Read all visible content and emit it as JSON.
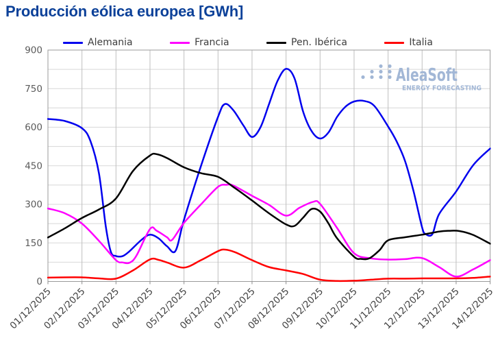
{
  "watermark": {
    "name": "AleaSoft",
    "tagline": "ENERGY FORECASTING",
    "color": "#a2b7d6",
    "logo": "dots-triangle-icon"
  },
  "chart_data": {
    "type": "line",
    "title": "Producción eólica europea [GWh]",
    "title_color": "#0c4199",
    "xlabel": "",
    "ylabel": "",
    "ylim": [
      0,
      900
    ],
    "y_major_ticks": [
      0,
      150,
      300,
      450,
      600,
      750,
      900
    ],
    "y_minor_grid_step": 75,
    "grid": true,
    "legend_position": "top",
    "x_tick_labels": [
      "01/12/2025",
      "02/12/2025",
      "03/12/2025",
      "04/12/2025",
      "05/12/2025",
      "06/12/2025",
      "07/12/2025",
      "08/12/2025",
      "09/12/2025",
      "10/12/2025",
      "11/12/2025",
      "12/12/2025",
      "13/12/2025",
      "14/12/2025"
    ],
    "x_unit": "day-index (1 = 01/12/2025), fractional = intra-day",
    "y_unit": "GWh",
    "series": [
      {
        "name": "Alemania",
        "color": "#0000ee",
        "points": [
          [
            1,
            632
          ],
          [
            1.5,
            624
          ],
          [
            2,
            596
          ],
          [
            2.25,
            546
          ],
          [
            2.5,
            420
          ],
          [
            2.7,
            215
          ],
          [
            2.85,
            115
          ],
          [
            3,
            99
          ],
          [
            3.2,
            99
          ],
          [
            3.4,
            118
          ],
          [
            3.75,
            162
          ],
          [
            4,
            182
          ],
          [
            4.25,
            168
          ],
          [
            4.5,
            137
          ],
          [
            4.75,
            119
          ],
          [
            5,
            240
          ],
          [
            5.5,
            450
          ],
          [
            6,
            640
          ],
          [
            6.2,
            690
          ],
          [
            6.45,
            666
          ],
          [
            6.75,
            606
          ],
          [
            7,
            562
          ],
          [
            7.25,
            600
          ],
          [
            7.5,
            690
          ],
          [
            7.75,
            780
          ],
          [
            8,
            827
          ],
          [
            8.25,
            790
          ],
          [
            8.5,
            661
          ],
          [
            8.75,
            585
          ],
          [
            9,
            556
          ],
          [
            9.25,
            580
          ],
          [
            9.5,
            640
          ],
          [
            9.75,
            680
          ],
          [
            10,
            700
          ],
          [
            10.3,
            702
          ],
          [
            10.6,
            682
          ],
          [
            11,
            603
          ],
          [
            11.25,
            545
          ],
          [
            11.5,
            468
          ],
          [
            11.75,
            350
          ],
          [
            12,
            210
          ],
          [
            12.1,
            185
          ],
          [
            12.3,
            184
          ],
          [
            12.5,
            262
          ],
          [
            13,
            350
          ],
          [
            13.5,
            452
          ],
          [
            14,
            517
          ]
        ]
      },
      {
        "name": "Francia",
        "color": "#ff00ff",
        "points": [
          [
            1,
            284
          ],
          [
            1.5,
            265
          ],
          [
            2,
            225
          ],
          [
            2.5,
            158
          ],
          [
            3,
            83
          ],
          [
            3.2,
            74
          ],
          [
            3.4,
            73
          ],
          [
            3.6,
            100
          ],
          [
            4,
            204
          ],
          [
            4.2,
            197
          ],
          [
            4.5,
            172
          ],
          [
            4.65,
            162
          ],
          [
            5,
            228
          ],
          [
            5.5,
            300
          ],
          [
            6,
            368
          ],
          [
            6.25,
            376
          ],
          [
            6.45,
            373
          ],
          [
            7,
            333
          ],
          [
            7.5,
            298
          ],
          [
            8,
            256
          ],
          [
            8.4,
            287
          ],
          [
            8.8,
            310
          ],
          [
            9,
            302
          ],
          [
            9.5,
            208
          ],
          [
            10,
            110
          ],
          [
            10.5,
            90
          ],
          [
            11,
            85
          ],
          [
            11.5,
            87
          ],
          [
            12,
            91
          ],
          [
            12.5,
            56
          ],
          [
            13,
            19
          ],
          [
            13.5,
            47
          ],
          [
            14,
            83
          ]
        ]
      },
      {
        "name": "Pen. Ibérica",
        "color": "#000000",
        "points": [
          [
            1,
            171
          ],
          [
            1.5,
            207
          ],
          [
            2,
            247
          ],
          [
            2.5,
            280
          ],
          [
            3,
            323
          ],
          [
            3.5,
            430
          ],
          [
            4,
            490
          ],
          [
            4.2,
            495
          ],
          [
            4.5,
            480
          ],
          [
            5,
            444
          ],
          [
            5.5,
            421
          ],
          [
            6,
            407
          ],
          [
            6.5,
            363
          ],
          [
            7,
            315
          ],
          [
            7.5,
            265
          ],
          [
            8,
            222
          ],
          [
            8.25,
            216
          ],
          [
            8.5,
            248
          ],
          [
            8.75,
            282
          ],
          [
            9,
            272
          ],
          [
            9.25,
            225
          ],
          [
            9.5,
            168
          ],
          [
            10,
            96
          ],
          [
            10.2,
            88
          ],
          [
            10.45,
            90
          ],
          [
            10.75,
            122
          ],
          [
            11,
            160
          ],
          [
            11.5,
            172
          ],
          [
            12,
            182
          ],
          [
            12.5,
            194
          ],
          [
            12.8,
            197
          ],
          [
            13.1,
            196
          ],
          [
            13.5,
            181
          ],
          [
            14,
            147
          ]
        ]
      },
      {
        "name": "Italia",
        "color": "#ff0000",
        "points": [
          [
            1,
            15
          ],
          [
            1.5,
            16
          ],
          [
            2,
            16
          ],
          [
            2.5,
            12
          ],
          [
            3,
            11
          ],
          [
            3.5,
            43
          ],
          [
            4,
            86
          ],
          [
            4.25,
            84
          ],
          [
            4.5,
            74
          ],
          [
            5,
            54
          ],
          [
            5.5,
            83
          ],
          [
            6,
            118
          ],
          [
            6.2,
            124
          ],
          [
            6.5,
            114
          ],
          [
            7,
            83
          ],
          [
            7.5,
            56
          ],
          [
            8,
            43
          ],
          [
            8.5,
            29
          ],
          [
            9,
            7
          ],
          [
            9.5,
            2
          ],
          [
            10,
            3
          ],
          [
            10.5,
            7
          ],
          [
            11,
            11
          ],
          [
            11.5,
            11
          ],
          [
            12,
            12
          ],
          [
            12.5,
            12
          ],
          [
            13,
            12
          ],
          [
            13.5,
            14
          ],
          [
            14,
            19
          ]
        ]
      }
    ]
  }
}
